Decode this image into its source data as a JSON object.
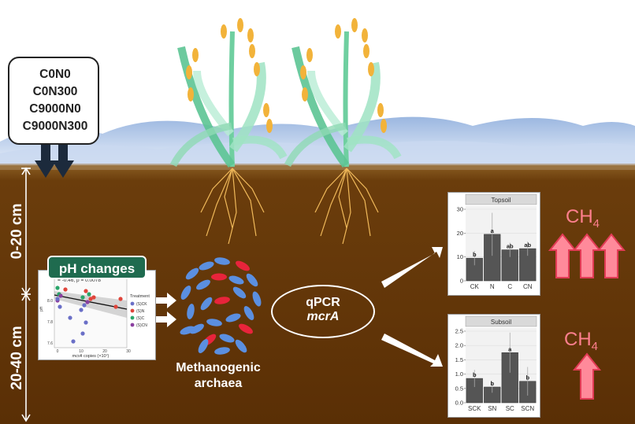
{
  "treatments": [
    "C0N0",
    "C0N300",
    "C9000N0",
    "C9000N300"
  ],
  "depths": {
    "top": "0-20 cm",
    "bottom": "20-40 cm"
  },
  "ph_badge": "pH changes",
  "scatter": {
    "annotation": "= -0.46, p = 0.0078",
    "xlabel_prefix": "mcrA",
    "xlabel_suffix": " copies (×10⁷)",
    "ylabel": "pH",
    "legend_title": "Treatment",
    "legend": [
      {
        "label": "(S)CK",
        "color": "#6a6fc7"
      },
      {
        "label": "(S)N",
        "color": "#e0453b"
      },
      {
        "label": "(S)C",
        "color": "#2aa56a"
      },
      {
        "label": "(S)CN",
        "color": "#8a3fa0"
      }
    ],
    "xticks": [
      "0",
      "10",
      "20",
      "30"
    ],
    "yticks": [
      "8.0",
      "7.8",
      "7.6"
    ]
  },
  "methanogen_label_1": "Methanogenic",
  "methanogen_label_2": "archaea",
  "qpcr_line1": "qPCR",
  "qpcr_line2": "mcrA",
  "ch4_main": "CH",
  "ch4_sub": "4",
  "chart_data": [
    {
      "type": "bar",
      "title": "Topsoil",
      "categories": [
        "CK",
        "N",
        "C",
        "CN"
      ],
      "values": [
        9.5,
        19.5,
        13,
        13.5
      ],
      "errors": [
        3,
        9,
        3,
        3
      ],
      "labels": [
        "b",
        "a",
        "ab",
        "ab"
      ],
      "ylim": [
        0,
        30
      ],
      "yticks": [
        "0",
        "10",
        "20",
        "30"
      ]
    },
    {
      "type": "bar",
      "title": "Subsoil",
      "categories": [
        "SCK",
        "SN",
        "SC",
        "SCN"
      ],
      "values": [
        0.85,
        0.55,
        1.75,
        0.75
      ],
      "errors": [
        0.3,
        0.2,
        0.7,
        0.5
      ],
      "labels": [
        "b",
        "b",
        "a",
        "b"
      ],
      "ylim": [
        0,
        2.5
      ],
      "yticks": [
        "0.0",
        "0.5",
        "1.0",
        "1.5",
        "2.0",
        "2.5"
      ]
    }
  ]
}
